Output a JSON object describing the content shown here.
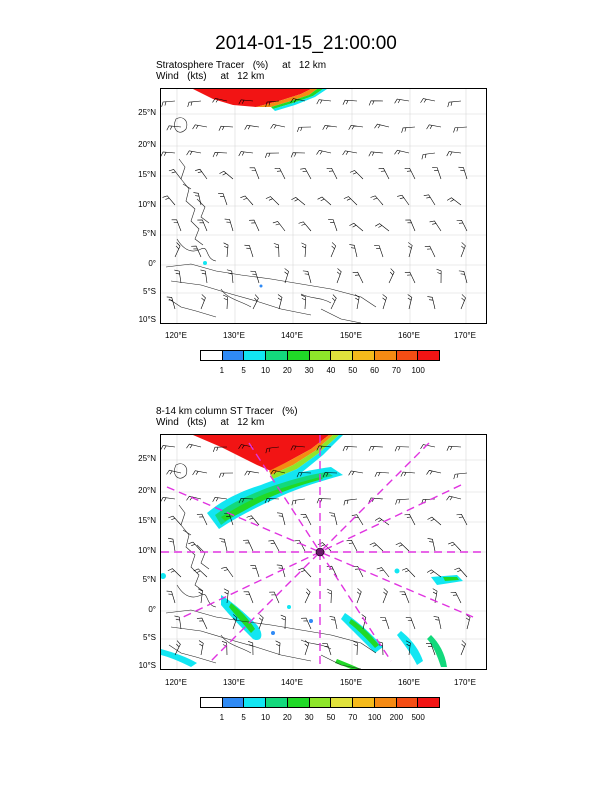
{
  "title": "2014-01-15_21:00:00",
  "panel1": {
    "line1": "Stratosphere Tracer   (%)     at   12 km",
    "line2": "Wind   (kts)     at   12 km",
    "colorbar": {
      "labels": [
        "1",
        "5",
        "10",
        "20",
        "30",
        "40",
        "50",
        "60",
        "70",
        "100"
      ],
      "colors": [
        "#ffffff",
        "#2f8af5",
        "#12e6f2",
        "#13d97c",
        "#20d927",
        "#8ee62a",
        "#e0e23c",
        "#f5ba1b",
        "#f58a13",
        "#f54d14",
        "#f21414"
      ]
    }
  },
  "panel2": {
    "line1": "8-14 km column ST Tracer   (%)",
    "line2": "Wind   (kts)     at   12 km",
    "colorbar": {
      "labels": [
        "1",
        "5",
        "10",
        "20",
        "30",
        "50",
        "70",
        "100",
        "200",
        "500"
      ],
      "colors": [
        "#ffffff",
        "#2f8af5",
        "#12e6f2",
        "#13d97c",
        "#20d927",
        "#8ee62a",
        "#e0e23c",
        "#f5ba1b",
        "#f58a13",
        "#f54d14",
        "#f21414"
      ]
    }
  },
  "axes": {
    "lat_ticks": [
      "25°N",
      "20°N",
      "15°N",
      "10°N",
      "5°N",
      "0°",
      "5°S",
      "10°S"
    ],
    "lon_ticks": [
      "120°E",
      "130°E",
      "140°E",
      "150°E",
      "160°E",
      "170°E"
    ]
  },
  "colors": {
    "guide_lines": "#e033e0",
    "center_marker": "#6b1b6b"
  }
}
